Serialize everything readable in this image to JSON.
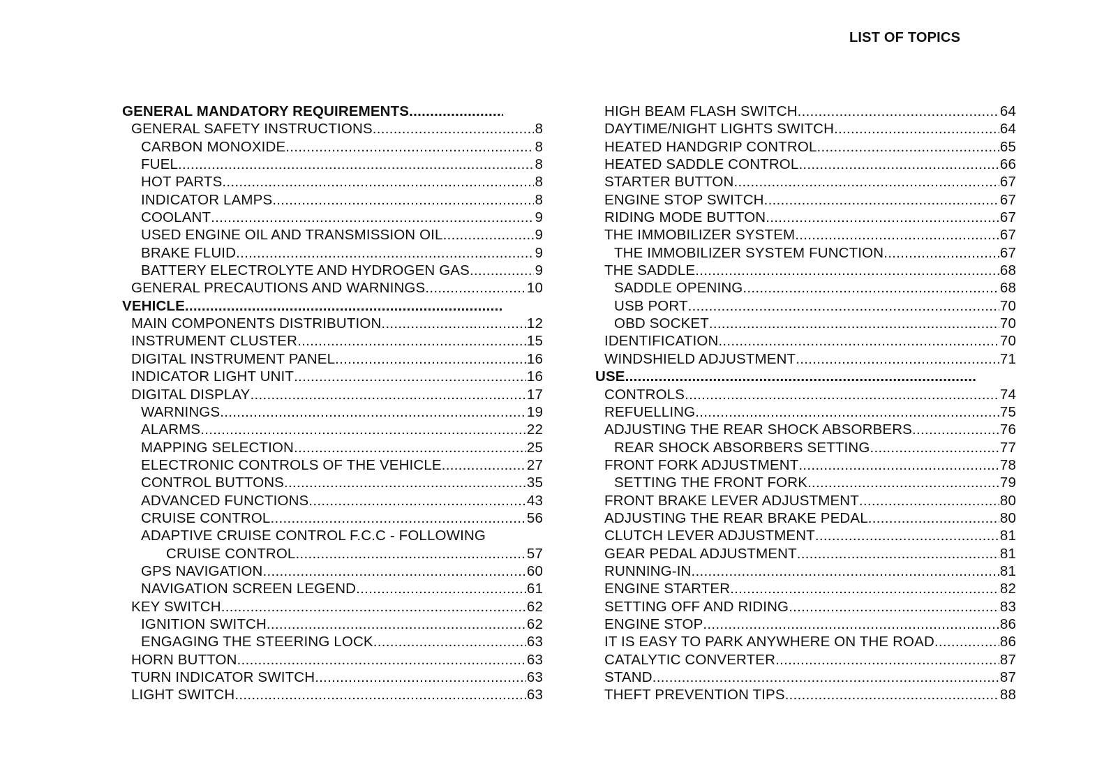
{
  "header": {
    "title": "LIST OF TOPICS"
  },
  "columns": [
    [
      {
        "t": "GENERAL MANDATORY REQUIREMENTS",
        "l": 0
      },
      {
        "t": "GENERAL SAFETY INSTRUCTIONS",
        "p": "8",
        "l": 1
      },
      {
        "t": "CARBON MONOXIDE",
        "p": "8",
        "l": 2
      },
      {
        "t": "FUEL",
        "p": "8",
        "l": 2
      },
      {
        "t": "HOT PARTS",
        "p": "8",
        "l": 2
      },
      {
        "t": "INDICATOR LAMPS",
        "p": "8",
        "l": 2
      },
      {
        "t": "COOLANT",
        "p": "9",
        "l": 2
      },
      {
        "t": "USED ENGINE OIL AND TRANSMISSION OIL",
        "p": "9",
        "l": 2
      },
      {
        "t": "BRAKE FLUID",
        "p": "9",
        "l": 2
      },
      {
        "t": "BATTERY ELECTROLYTE AND HYDROGEN GAS",
        "p": "9",
        "l": 2
      },
      {
        "t": "GENERAL PRECAUTIONS AND WARNINGS",
        "p": "10",
        "l": 1
      },
      {
        "t": "VEHICLE",
        "l": 0
      },
      {
        "t": "MAIN COMPONENTS DISTRIBUTION",
        "p": "12",
        "l": 1
      },
      {
        "t": "INSTRUMENT CLUSTER",
        "p": "15",
        "l": 1
      },
      {
        "t": "DIGITAL INSTRUMENT PANEL",
        "p": "16",
        "l": 1
      },
      {
        "t": "INDICATOR LIGHT UNIT",
        "p": "16",
        "l": 1
      },
      {
        "t": "DIGITAL DISPLAY",
        "p": "17",
        "l": 1
      },
      {
        "t": "WARNINGS",
        "p": "19",
        "l": 2
      },
      {
        "t": "ALARMS",
        "p": "22",
        "l": 2
      },
      {
        "t": "MAPPING SELECTION",
        "p": "25",
        "l": 2
      },
      {
        "t": "ELECTRONIC CONTROLS OF THE VEHICLE",
        "p": "27",
        "l": 2
      },
      {
        "t": "CONTROL BUTTONS",
        "p": "35",
        "l": 2
      },
      {
        "t": "ADVANCED FUNCTIONS",
        "p": "43",
        "l": 2
      },
      {
        "t": "CRUISE CONTROL",
        "p": "56",
        "l": 2
      },
      {
        "t": "ADAPTIVE CRUISE CONTROL F.C.C - FOLLOWING",
        "l": 2,
        "nolead": true
      },
      {
        "t": "CRUISE CONTROL",
        "p": "57",
        "l": 3
      },
      {
        "t": "GPS NAVIGATION",
        "p": "60",
        "l": 2
      },
      {
        "t": "NAVIGATION SCREEN LEGEND",
        "p": "61",
        "l": 2
      },
      {
        "t": "KEY SWITCH",
        "p": "62",
        "l": 1
      },
      {
        "t": "IGNITION SWITCH",
        "p": "62",
        "l": 2
      },
      {
        "t": "ENGAGING THE STEERING LOCK",
        "p": "63",
        "l": 2
      },
      {
        "t": "HORN BUTTON",
        "p": "63",
        "l": 1
      },
      {
        "t": "TURN INDICATOR SWITCH",
        "p": "63",
        "l": 1
      },
      {
        "t": "LIGHT SWITCH",
        "p": "63",
        "l": 1
      }
    ],
    [
      {
        "t": "HIGH BEAM FLASH SWITCH",
        "p": "64",
        "l": 1
      },
      {
        "t": "DAYTIME/NIGHT LIGHTS SWITCH",
        "p": "64",
        "l": 1
      },
      {
        "t": "HEATED HANDGRIP CONTROL",
        "p": "65",
        "l": 1
      },
      {
        "t": "HEATED SADDLE CONTROL",
        "p": "66",
        "l": 1
      },
      {
        "t": "STARTER BUTTON",
        "p": "67",
        "l": 1
      },
      {
        "t": "ENGINE STOP SWITCH",
        "p": "67",
        "l": 1
      },
      {
        "t": "RIDING MODE BUTTON",
        "p": "67",
        "l": 1
      },
      {
        "t": "THE IMMOBILIZER SYSTEM",
        "p": "67",
        "l": 1
      },
      {
        "t": "THE IMMOBILIZER SYSTEM FUNCTION",
        "p": "67",
        "l": 2
      },
      {
        "t": "THE SADDLE",
        "p": "68",
        "l": 1
      },
      {
        "t": "SADDLE OPENING",
        "p": "68",
        "l": 2
      },
      {
        "t": "USB PORT",
        "p": "70",
        "l": 2
      },
      {
        "t": "OBD SOCKET",
        "p": "70",
        "l": 2
      },
      {
        "t": "IDENTIFICATION",
        "p": "70",
        "l": 1
      },
      {
        "t": "WINDSHIELD ADJUSTMENT",
        "p": "71",
        "l": 1
      },
      {
        "t": "USE",
        "l": 0
      },
      {
        "t": "CONTROLS",
        "p": "74",
        "l": 1
      },
      {
        "t": "REFUELLING",
        "p": "75",
        "l": 1
      },
      {
        "t": "ADJUSTING THE REAR SHOCK ABSORBERS",
        "p": "76",
        "l": 1
      },
      {
        "t": "REAR SHOCK ABSORBERS SETTING",
        "p": "77",
        "l": 2
      },
      {
        "t": "FRONT FORK ADJUSTMENT",
        "p": "78",
        "l": 1
      },
      {
        "t": "SETTING THE FRONT FORK",
        "p": "79",
        "l": 2
      },
      {
        "t": "FRONT BRAKE LEVER ADJUSTMENT",
        "p": "80",
        "l": 1
      },
      {
        "t": "ADJUSTING THE REAR BRAKE PEDAL",
        "p": "80",
        "l": 1
      },
      {
        "t": "CLUTCH LEVER ADJUSTMENT",
        "p": "81",
        "l": 1
      },
      {
        "t": "GEAR PEDAL ADJUSTMENT",
        "p": "81",
        "l": 1
      },
      {
        "t": "RUNNING-IN",
        "p": "81",
        "l": 1
      },
      {
        "t": "ENGINE STARTER",
        "p": "82",
        "l": 1
      },
      {
        "t": "SETTING OFF AND RIDING",
        "p": "83",
        "l": 1
      },
      {
        "t": "ENGINE STOP",
        "p": "86",
        "l": 1
      },
      {
        "t": "IT IS EASY TO PARK ANYWHERE ON THE ROAD",
        "p": "86",
        "l": 1
      },
      {
        "t": "CATALYTIC CONVERTER",
        "p": "87",
        "l": 1
      },
      {
        "t": "STAND",
        "p": "87",
        "l": 1
      },
      {
        "t": "THEFT PREVENTION TIPS",
        "p": "88",
        "l": 1
      }
    ]
  ]
}
